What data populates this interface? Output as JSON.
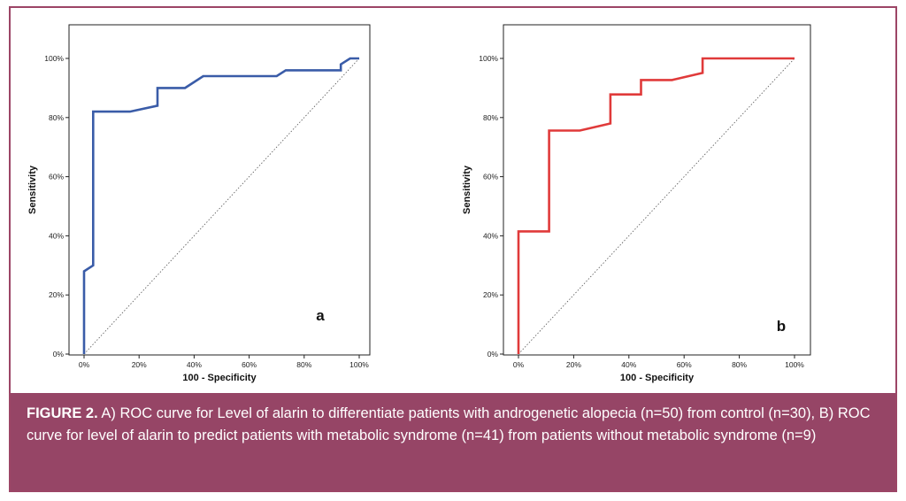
{
  "theme": {
    "caption_band_color": "#964566",
    "frame_color": "#9c4566"
  },
  "chart_data": [
    {
      "type": "line",
      "panel_label": "a",
      "xlabel": "100 - Specificity",
      "ylabel": "Sensitivity",
      "xlim": [
        0,
        100
      ],
      "ylim": [
        0,
        100
      ],
      "x_ticks": [
        "0%",
        "20%",
        "40%",
        "60%",
        "80%",
        "100%"
      ],
      "y_ticks": [
        "0%",
        "20%",
        "40%",
        "60%",
        "80%",
        "100%"
      ],
      "grid": false,
      "reference_line": true,
      "series": [
        {
          "color": "#3a5ca8",
          "x": [
            0,
            0,
            3.3,
            3.3,
            16.7,
            26.7,
            26.7,
            36.7,
            43.3,
            70,
            73.3,
            93.3,
            93.3,
            96.7,
            100
          ],
          "y": [
            0,
            28,
            30,
            82,
            82,
            84,
            90,
            90,
            94,
            94,
            96,
            96,
            98,
            100,
            100
          ]
        }
      ]
    },
    {
      "type": "line",
      "panel_label": "b",
      "xlabel": "100 - Specificity",
      "ylabel": "Sensitivity",
      "xlim": [
        0,
        100
      ],
      "ylim": [
        0,
        100
      ],
      "x_ticks": [
        "0%",
        "20%",
        "40%",
        "60%",
        "80%",
        "100%"
      ],
      "y_ticks": [
        "0%",
        "20%",
        "40%",
        "60%",
        "80%",
        "100%"
      ],
      "grid": false,
      "reference_line": true,
      "series": [
        {
          "color": "#e03a3a",
          "x": [
            0,
            0,
            11.1,
            11.1,
            22.2,
            33.3,
            33.3,
            44.4,
            44.4,
            55.6,
            66.7,
            66.7,
            100
          ],
          "y": [
            0,
            41.5,
            41.5,
            75.6,
            75.6,
            78,
            87.8,
            87.8,
            92.7,
            92.7,
            95.1,
            100,
            100
          ]
        }
      ]
    }
  ],
  "caption": {
    "label": "FIGURE 2.",
    "text": " A) ROC curve for Level of alarin to differentiate patients with androgenetic alopecia (n=50) from control (n=30), B) ROC curve for level of alarin to predict patients with metabolic syndrome (n=41) from patients without metabolic syndrome (n=9)"
  }
}
